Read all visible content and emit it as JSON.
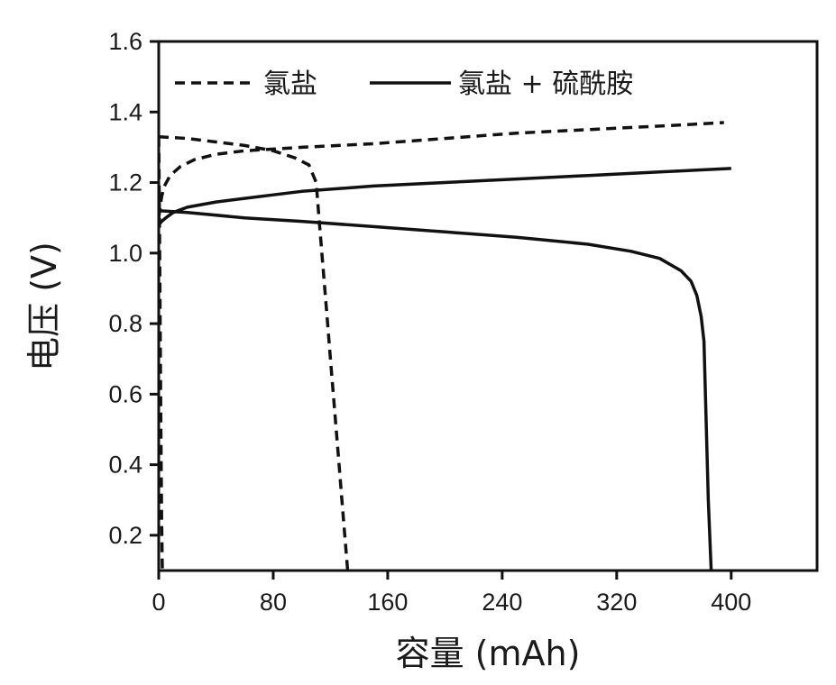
{
  "chart_data": {
    "type": "line",
    "title": "",
    "xlabel": "容量 (mAh)",
    "ylabel": "电压 (V)",
    "xlim": [
      0,
      460
    ],
    "ylim": [
      0.1,
      1.6
    ],
    "xticks": [
      0,
      80,
      160,
      240,
      320,
      400
    ],
    "xtick_labels": [
      "0",
      "80",
      "160",
      "240",
      "320",
      "400"
    ],
    "yticks": [
      0.2,
      0.4,
      0.6,
      0.8,
      1.0,
      1.2,
      1.4,
      1.6
    ],
    "ytick_labels": [
      "0.2",
      "0.4",
      "0.6",
      "0.8",
      "1.0",
      "1.2",
      "1.4",
      "1.6"
    ],
    "grid": false,
    "legend_position": "top-left",
    "series": [
      {
        "name": "氯盐",
        "style": "dashed",
        "color": "#111111",
        "curves": [
          {
            "x": [
              0,
              1,
              2,
              4,
              8,
              15,
              25,
              40,
              60,
              80,
              100,
              150,
              200,
              250,
              300,
              350,
              395
            ],
            "y": [
              1.1,
              1.13,
              1.16,
              1.19,
              1.22,
              1.245,
              1.265,
              1.28,
              1.29,
              1.295,
              1.3,
              1.31,
              1.325,
              1.34,
              1.35,
              1.36,
              1.37
            ]
          },
          {
            "x": [
              0,
              20,
              40,
              60,
              80,
              95,
              105,
              110,
              112,
              114,
              116,
              118,
              120,
              122,
              124,
              126,
              128,
              130,
              132
            ],
            "y": [
              1.33,
              1.325,
              1.315,
              1.305,
              1.29,
              1.27,
              1.25,
              1.2,
              1.1,
              1.0,
              0.9,
              0.8,
              0.7,
              0.6,
              0.5,
              0.4,
              0.3,
              0.2,
              0.1
            ]
          },
          {
            "x": [
              0,
              0.5,
              1,
              1.5,
              2,
              2.5
            ],
            "y": [
              1.33,
              1.1,
              0.8,
              0.5,
              0.25,
              0.1
            ]
          }
        ]
      },
      {
        "name": "氯盐 + 硫酰胺",
        "style": "solid",
        "color": "#111111",
        "curves": [
          {
            "x": [
              0,
              2,
              5,
              10,
              20,
              40,
              60,
              80,
              100,
              150,
              200,
              250,
              300,
              350,
              400
            ],
            "y": [
              1.08,
              1.09,
              1.1,
              1.115,
              1.13,
              1.145,
              1.155,
              1.165,
              1.175,
              1.19,
              1.2,
              1.21,
              1.22,
              1.23,
              1.24
            ]
          },
          {
            "x": [
              0,
              20,
              60,
              100,
              150,
              200,
              250,
              300,
              330,
              350,
              365,
              372,
              376,
              379,
              381,
              382,
              383,
              384,
              385,
              386
            ],
            "y": [
              1.12,
              1.115,
              1.1,
              1.09,
              1.075,
              1.06,
              1.045,
              1.025,
              1.005,
              0.985,
              0.95,
              0.92,
              0.88,
              0.82,
              0.75,
              0.6,
              0.45,
              0.3,
              0.2,
              0.1
            ]
          }
        ]
      }
    ]
  }
}
